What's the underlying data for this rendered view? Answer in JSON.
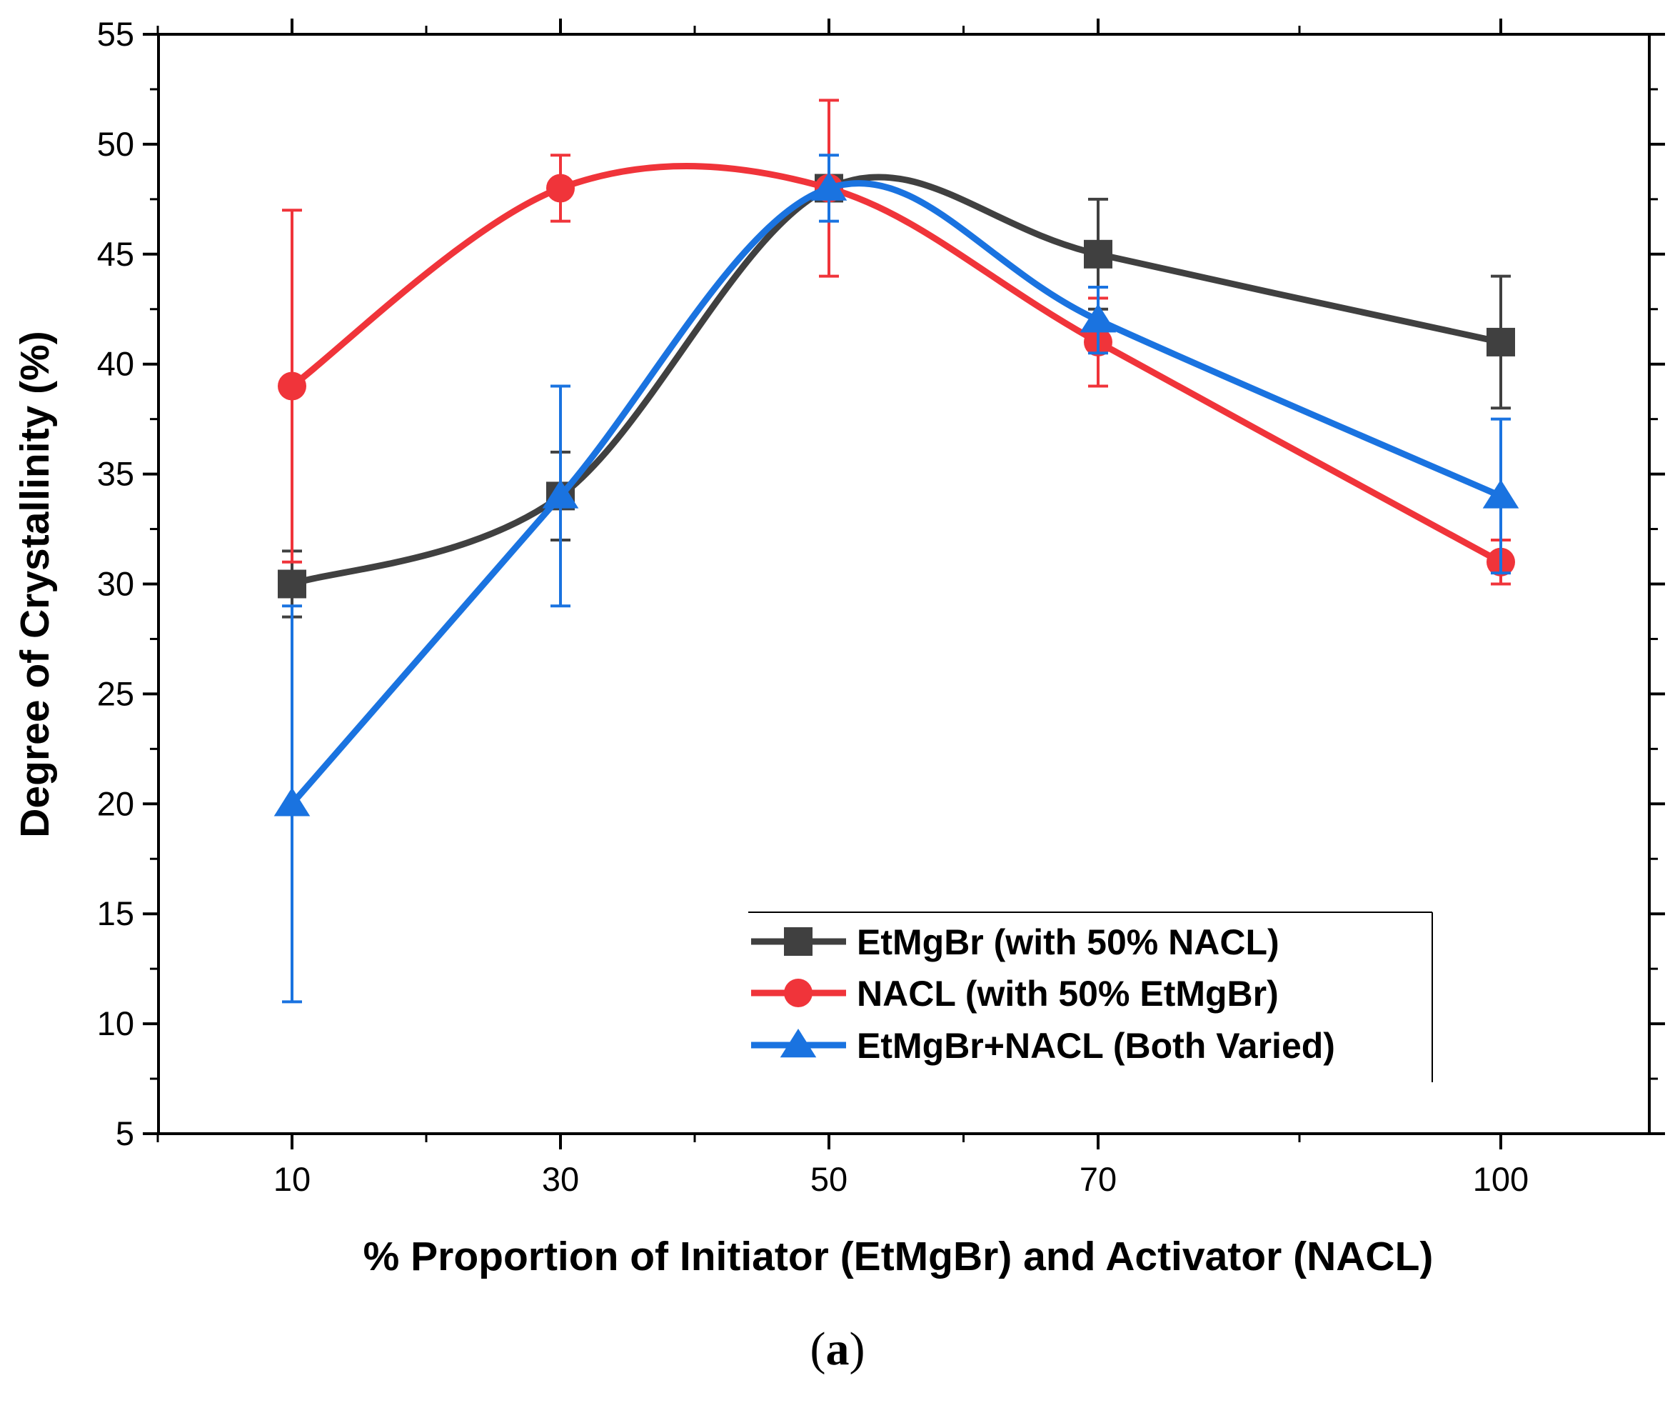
{
  "chart_data": {
    "type": "line",
    "xlabel": "% Proportion of Initiator (EtMgBr) and Activator (NACL)",
    "ylabel": "Degree of Crystallinity (%)",
    "x_ticks": [
      10,
      30,
      50,
      70,
      100
    ],
    "y_ticks": [
      5,
      10,
      15,
      20,
      25,
      30,
      35,
      40,
      45,
      50,
      55
    ],
    "ylim": [
      5,
      55
    ],
    "grid": false,
    "legend_position": "bottom-right",
    "series": [
      {
        "name": "EtMgBr (with 50% NACL)",
        "color": "#404040",
        "marker": "square",
        "x": [
          10,
          30,
          50,
          70,
          100
        ],
        "y": [
          30,
          34,
          48,
          45,
          41
        ],
        "error": [
          1.5,
          2,
          0.5,
          2.5,
          3
        ]
      },
      {
        "name": "NACL (with 50% EtMgBr)",
        "color": "#f0343a",
        "marker": "circle",
        "x": [
          10,
          30,
          50,
          70,
          100
        ],
        "y": [
          39,
          48,
          48,
          41,
          31
        ],
        "error": [
          8,
          1.5,
          4,
          2,
          1
        ]
      },
      {
        "name": "EtMgBr+NACL (Both Varied)",
        "color": "#1a73e0",
        "marker": "triangle",
        "x": [
          10,
          30,
          50,
          70,
          100
        ],
        "y": [
          20,
          34,
          48,
          42,
          34
        ],
        "error": [
          9,
          5,
          1.5,
          1.5,
          3.5
        ]
      }
    ]
  },
  "caption": {
    "open": "(",
    "letter": "a",
    "close": ")"
  }
}
